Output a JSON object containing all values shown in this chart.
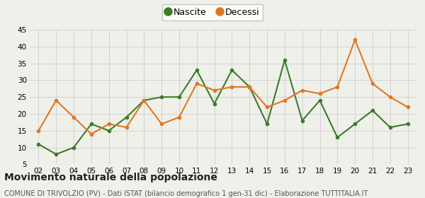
{
  "years": [
    "02",
    "03",
    "04",
    "05",
    "06",
    "07",
    "08",
    "09",
    "10",
    "11",
    "12",
    "13",
    "14",
    "15",
    "16",
    "17",
    "18",
    "19",
    "20",
    "21",
    "22",
    "23"
  ],
  "nascite": [
    11,
    8,
    10,
    17,
    15,
    19,
    24,
    25,
    25,
    33,
    23,
    33,
    28,
    17,
    36,
    18,
    24,
    13,
    17,
    21,
    16,
    17
  ],
  "decessi": [
    15,
    24,
    19,
    14,
    17,
    16,
    24,
    17,
    19,
    29,
    27,
    28,
    28,
    22,
    24,
    27,
    26,
    28,
    42,
    29,
    25,
    22
  ],
  "nascite_color": "#3a7d27",
  "decessi_color": "#e07722",
  "background_color": "#f0f0eb",
  "grid_color": "#cccccc",
  "ylim": [
    5,
    45
  ],
  "yticks": [
    5,
    10,
    15,
    20,
    25,
    30,
    35,
    40,
    45
  ],
  "title": "Movimento naturale della popolazione",
  "subtitle": "COMUNE DI TRIVOLZIO (PV) - Dati ISTAT (bilancio demografico 1 gen-31 dic) - Elaborazione TUTTITALIA.IT",
  "legend_nascite": "Nascite",
  "legend_decessi": "Decessi",
  "title_fontsize": 10,
  "subtitle_fontsize": 7,
  "marker_size": 4,
  "line_width": 1.5
}
